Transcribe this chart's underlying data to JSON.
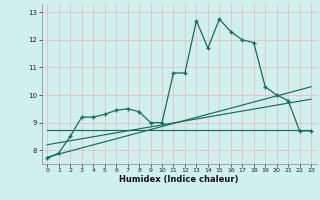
{
  "xlabel": "Humidex (Indice chaleur)",
  "xlim": [
    -0.5,
    23.5
  ],
  "ylim": [
    7.5,
    13.3
  ],
  "yticks": [
    8,
    9,
    10,
    11,
    12,
    13
  ],
  "xticks": [
    0,
    1,
    2,
    3,
    4,
    5,
    6,
    7,
    8,
    9,
    10,
    11,
    12,
    13,
    14,
    15,
    16,
    17,
    18,
    19,
    20,
    21,
    22,
    23
  ],
  "bg_color": "#cff0ed",
  "grid_color": "#e8c0c0",
  "line_color": "#1a6b5a",
  "data_x": [
    0,
    1,
    2,
    3,
    4,
    5,
    6,
    7,
    8,
    9,
    10,
    11,
    12,
    13,
    14,
    15,
    16,
    17,
    18,
    19,
    20,
    21,
    22,
    23
  ],
  "data_y": [
    7.7,
    7.9,
    8.5,
    9.2,
    9.2,
    9.3,
    9.45,
    9.5,
    9.4,
    9.0,
    9.0,
    10.8,
    10.8,
    12.7,
    11.7,
    12.75,
    12.3,
    12.0,
    11.9,
    10.3,
    10.0,
    9.8,
    8.7,
    8.7
  ],
  "line1_x": [
    0,
    23
  ],
  "line1_y": [
    7.75,
    10.3
  ],
  "line2_x": [
    0,
    23
  ],
  "line2_y": [
    8.2,
    9.85
  ],
  "line3_x": [
    0,
    23
  ],
  "line3_y": [
    8.75,
    8.75
  ]
}
